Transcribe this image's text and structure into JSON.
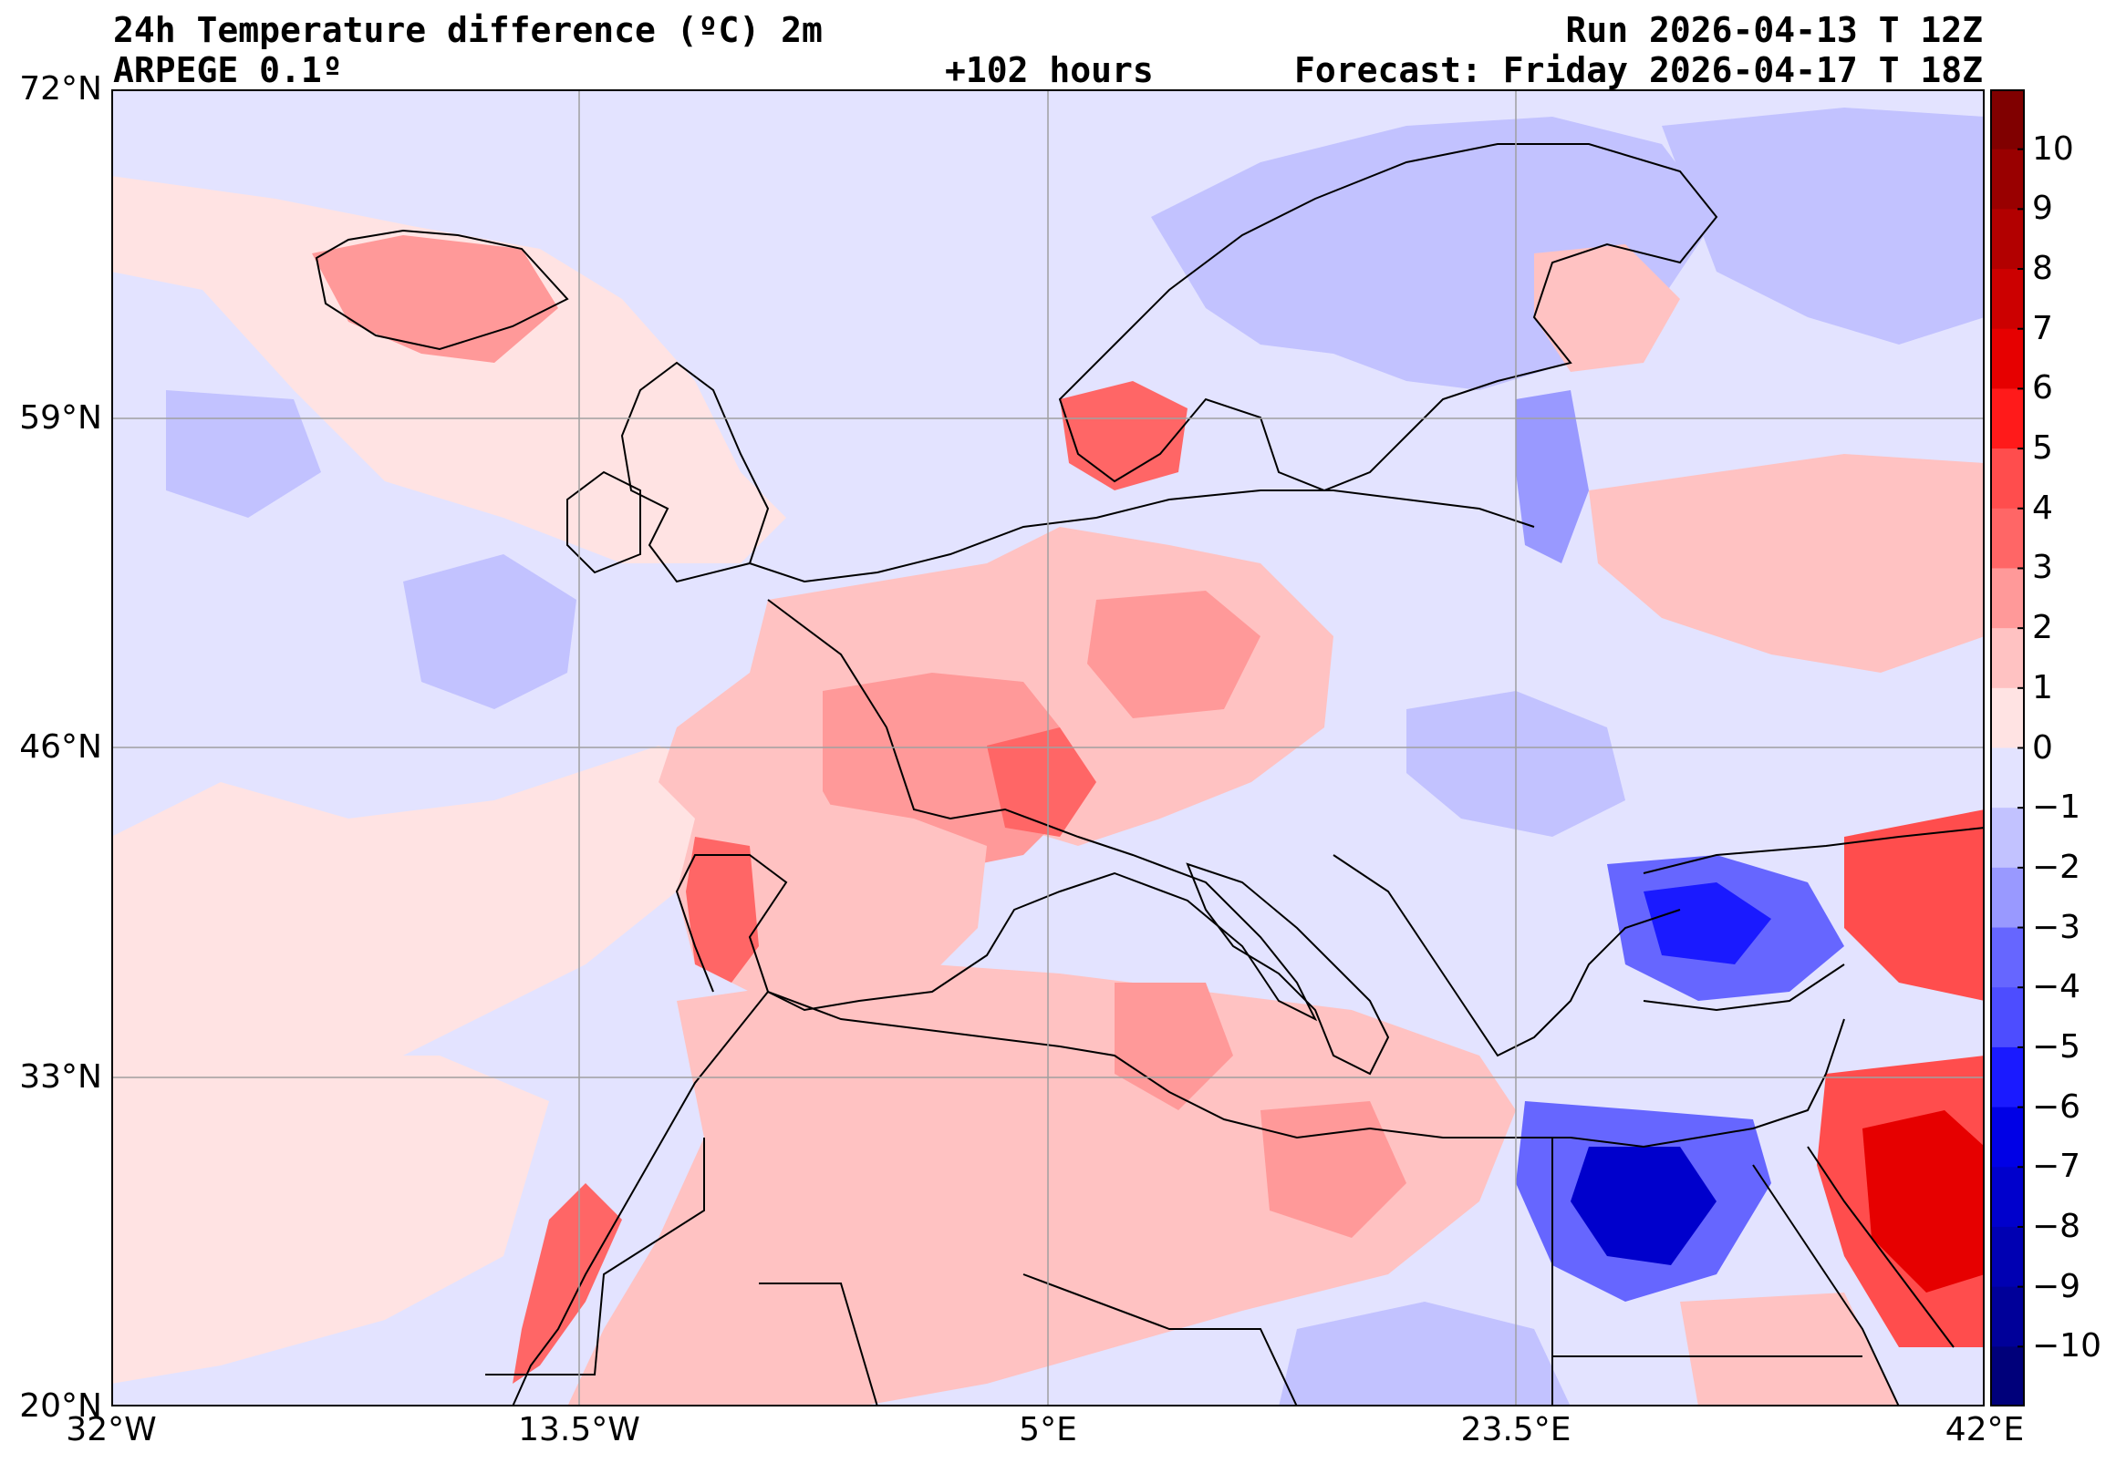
{
  "header": {
    "title": "24h Temperature difference (ºC) 2m",
    "model": "ARPEGE 0.1º",
    "lead_time": "+102 hours",
    "run": "Run 2026-04-13 T 12Z",
    "forecast": "Forecast: Friday 2026-04-17 T 18Z"
  },
  "axes": {
    "lat_ticks": [
      "72°N",
      "59°N",
      "46°N",
      "33°N",
      "20°N"
    ],
    "lon_ticks": [
      "32°W",
      "13.5°W",
      "5°E",
      "23.5°E",
      "42°E"
    ],
    "lat_range": [
      20,
      72
    ],
    "lon_range": [
      -32,
      42
    ]
  },
  "colorbar": {
    "min": -11,
    "max": 11,
    "labels": [
      "10",
      "9",
      "8",
      "7",
      "6",
      "5",
      "4",
      "3",
      "2",
      "1",
      "0",
      "−1",
      "−2",
      "−3",
      "−4",
      "−5",
      "−6",
      "−7",
      "−8",
      "−9",
      "−10"
    ],
    "label_values": [
      10,
      9,
      8,
      7,
      6,
      5,
      4,
      3,
      2,
      1,
      0,
      -1,
      -2,
      -3,
      -4,
      -5,
      -6,
      -7,
      -8,
      -9,
      -10
    ],
    "colors_high_to_low": [
      "#800000",
      "#990000",
      "#b20000",
      "#cc0000",
      "#e60000",
      "#ff1a1a",
      "#ff4d4d",
      "#ff6666",
      "#ff9999",
      "#ffc2c2",
      "#ffe3e3",
      "#e3e3ff",
      "#c2c2ff",
      "#9999ff",
      "#6666ff",
      "#4d4dff",
      "#1a1aff",
      "#0000e6",
      "#0000cc",
      "#0000b2",
      "#000099",
      "#00007a"
    ]
  }
}
